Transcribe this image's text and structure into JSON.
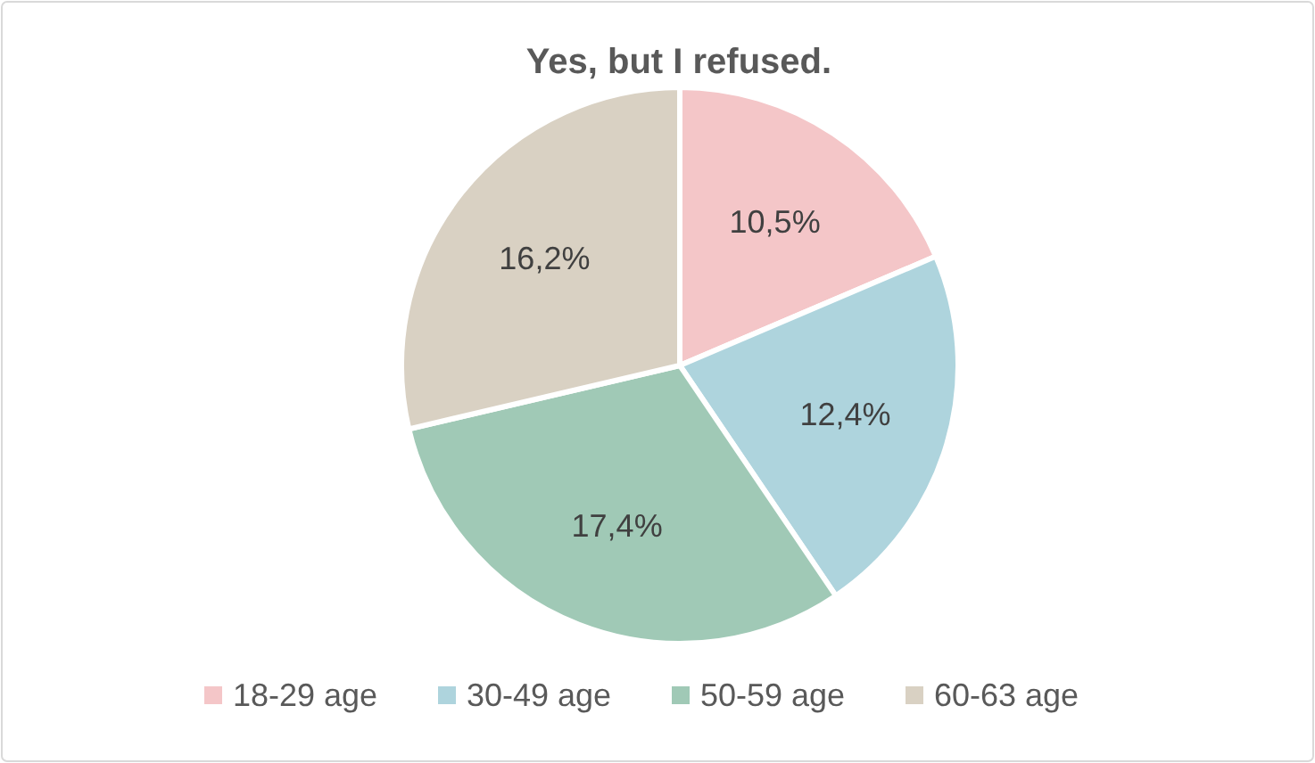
{
  "chart_data": {
    "type": "pie",
    "title": "Yes, but I refused.",
    "categories": [
      "18-29 age",
      "30-49 age",
      "50-59 age",
      "60-63 age"
    ],
    "values": [
      10.5,
      12.4,
      17.4,
      16.2
    ],
    "value_labels": [
      "10,5%",
      "12,4%",
      "17,4%",
      "16,2%"
    ],
    "colors": [
      "#f4c6c8",
      "#aed4dd",
      "#a0c9b6",
      "#d9d1c3"
    ],
    "legend": "bottom"
  }
}
